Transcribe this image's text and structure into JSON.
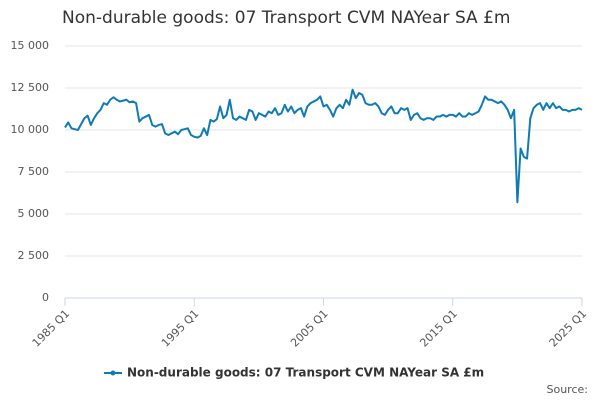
{
  "chart_data": {
    "type": "line",
    "title": "Non-durable goods: 07 Transport CVM NAYear SA £m",
    "source": "Source:",
    "categories": [
      "1985 Q1",
      null,
      null,
      null,
      null,
      null,
      null,
      null,
      null,
      null,
      null,
      null,
      null,
      null,
      null,
      null,
      null,
      null,
      null,
      null,
      null,
      null,
      null,
      null,
      null,
      null,
      null,
      null,
      null,
      null,
      null,
      null,
      null,
      null,
      null,
      null,
      null,
      null,
      null,
      null,
      "1995 Q1",
      null,
      null,
      null,
      null,
      null,
      null,
      null,
      null,
      null,
      null,
      null,
      null,
      null,
      null,
      null,
      null,
      null,
      null,
      null,
      null,
      null,
      null,
      null,
      null,
      null,
      null,
      null,
      null,
      null,
      null,
      null,
      null,
      null,
      null,
      null,
      null,
      null,
      null,
      null,
      "2005 Q1",
      null,
      null,
      null,
      null,
      null,
      null,
      null,
      null,
      null,
      null,
      null,
      null,
      null,
      null,
      null,
      null,
      null,
      null,
      null,
      null,
      null,
      null,
      null,
      null,
      null,
      null,
      null,
      null,
      null,
      null,
      null,
      null,
      null,
      null,
      null,
      null,
      null,
      null,
      null,
      "2015 Q1",
      null,
      null,
      null,
      null,
      null,
      null,
      null,
      null,
      null,
      null,
      null,
      null,
      null,
      null,
      null,
      null,
      null,
      null,
      null,
      null,
      null,
      null,
      null,
      null,
      null,
      null,
      null,
      null,
      null,
      null,
      null,
      null,
      null,
      null,
      null,
      null,
      null,
      null,
      null,
      "2025 Q1"
    ],
    "series": [
      {
        "name": "Non-durable goods: 07 Transport CVM NAYear SA £m",
        "color": "#0e7bb5",
        "values": [
          10150,
          10450,
          10100,
          10050,
          10000,
          10350,
          10700,
          10850,
          10300,
          10700,
          11000,
          11200,
          11600,
          11500,
          11800,
          11950,
          11800,
          11700,
          11750,
          11800,
          11650,
          11700,
          11600,
          10500,
          10700,
          10800,
          10900,
          10300,
          10200,
          10300,
          10350,
          9800,
          9700,
          9800,
          9900,
          9750,
          10000,
          10050,
          10100,
          9700,
          9600,
          9550,
          9650,
          10100,
          9700,
          10600,
          10500,
          10650,
          11400,
          10700,
          10900,
          11800,
          10700,
          10600,
          10800,
          10700,
          10600,
          11200,
          11100,
          10600,
          11000,
          10900,
          10800,
          11100,
          11000,
          11300,
          10900,
          11000,
          11500,
          11100,
          11400,
          11000,
          11200,
          11300,
          10800,
          11400,
          11600,
          11700,
          11800,
          12000,
          11400,
          11500,
          11200,
          10800,
          11300,
          11500,
          11300,
          11800,
          11500,
          12400,
          11900,
          12200,
          12100,
          11600,
          11500,
          11500,
          11600,
          11400,
          11000,
          10900,
          11200,
          11400,
          11000,
          11000,
          11300,
          11200,
          11300,
          10600,
          10900,
          11000,
          10700,
          10600,
          10700,
          10700,
          10600,
          10800,
          10800,
          10900,
          10800,
          10900,
          10900,
          10800,
          11000,
          10800,
          10800,
          11000,
          10900,
          11000,
          11100,
          11500,
          12000,
          11800,
          11800,
          11700,
          11600,
          11700,
          11500,
          11200,
          10700,
          11200,
          5700,
          8900,
          8400,
          8300,
          10700,
          11300,
          11500,
          11600,
          11200,
          11600,
          11300,
          11600,
          11300,
          11400,
          11200,
          11200,
          11100,
          11200,
          11200,
          11300,
          11200
        ]
      }
    ],
    "ylim": [
      0,
      15000
    ],
    "yticks": [
      0,
      {
        "value": 2500,
        "label": "2 500"
      },
      {
        "value": 5000,
        "label": "5 000"
      },
      {
        "value": 7500,
        "label": "7 500"
      },
      {
        "value": 10000,
        "label": "10 000"
      },
      {
        "value": 12500,
        "label": "12 500"
      },
      {
        "value": 15000,
        "label": "15 000"
      }
    ],
    "grid": true
  }
}
